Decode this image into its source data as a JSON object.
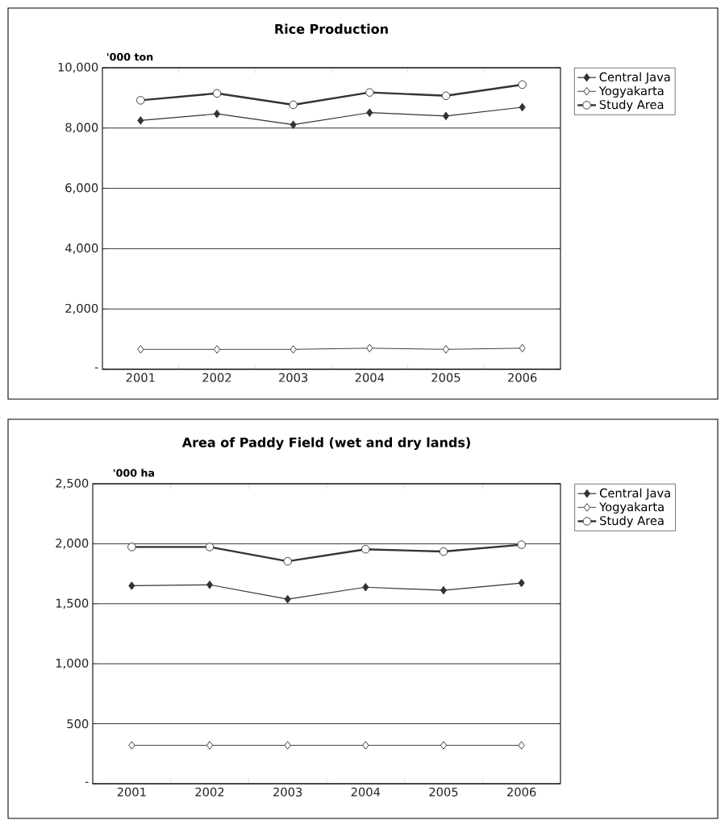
{
  "chart_data": [
    {
      "type": "line",
      "title": "Rice Production",
      "ylabel": "'000 ton",
      "categories": [
        "2001",
        "2002",
        "2003",
        "2004",
        "2005",
        "2006"
      ],
      "series": [
        {
          "name": "Central Java",
          "color": "#333333",
          "marker": "diamond",
          "values": [
            8250,
            8470,
            8110,
            8510,
            8400,
            8690
          ]
        },
        {
          "name": "Yogyakarta",
          "color": "#333333",
          "marker": "diamond",
          "values": [
            660,
            660,
            660,
            700,
            660,
            700
          ]
        },
        {
          "name": "Study Area",
          "color": "#333333",
          "marker": "circle",
          "values": [
            8920,
            9150,
            8770,
            9180,
            9070,
            9440
          ]
        }
      ],
      "ylim": [
        0,
        10000
      ],
      "yticks": [
        {
          "value": 0,
          "label": "-"
        },
        {
          "value": 2000,
          "label": "2,000"
        },
        {
          "value": 4000,
          "label": "4,000"
        },
        {
          "value": 6000,
          "label": "6,000"
        },
        {
          "value": 8000,
          "label": "8,000"
        },
        {
          "value": 10000,
          "label": "10,000"
        }
      ],
      "grid": "y",
      "legend": "top right"
    },
    {
      "type": "line",
      "title": "Area of Paddy Field (wet and dry lands)",
      "ylabel": "'000 ha",
      "categories": [
        "2001",
        "2002",
        "2003",
        "2004",
        "2005",
        "2006"
      ],
      "series": [
        {
          "name": "Central Java",
          "color": "#333333",
          "marker": "diamond",
          "values": [
            1650,
            1658,
            1538,
            1638,
            1612,
            1673
          ]
        },
        {
          "name": "Yogyakarta",
          "color": "#333333",
          "marker": "diamond",
          "values": [
            320,
            320,
            320,
            320,
            320,
            320
          ]
        },
        {
          "name": "Study Area",
          "color": "#333333",
          "marker": "circle",
          "values": [
            1973,
            1973,
            1854,
            1954,
            1935,
            1992
          ]
        }
      ],
      "ylim": [
        0,
        2500
      ],
      "yticks": [
        {
          "value": 0,
          "label": "-"
        },
        {
          "value": 500,
          "label": "500"
        },
        {
          "value": 1000,
          "label": "1,000"
        },
        {
          "value": 1500,
          "label": "1,500"
        },
        {
          "value": 2000,
          "label": "2,000"
        },
        {
          "value": 2500,
          "label": "2,500"
        }
      ],
      "grid": "y",
      "legend": "top right"
    }
  ]
}
